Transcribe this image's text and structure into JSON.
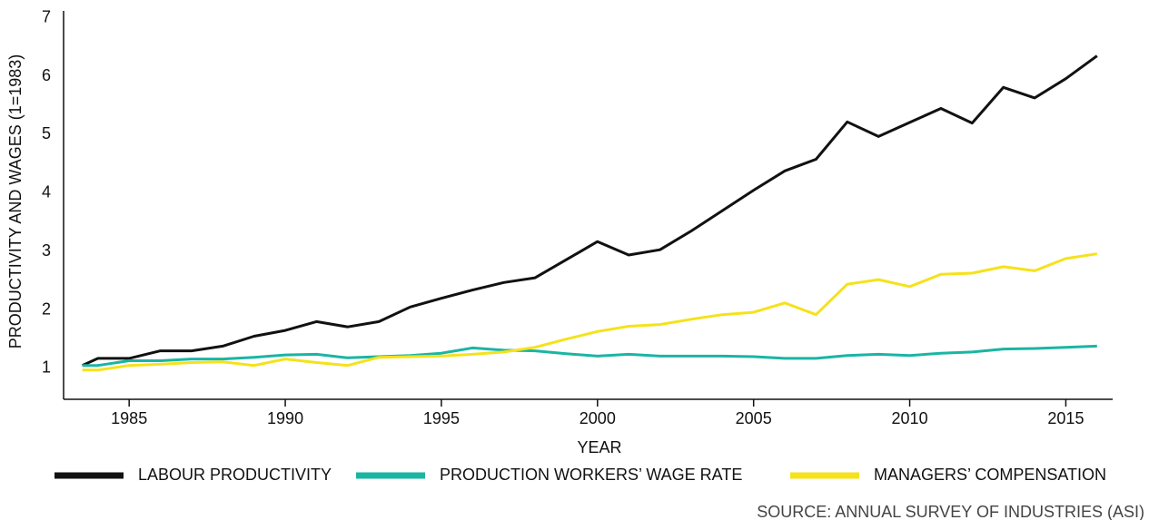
{
  "chart_data": {
    "type": "line",
    "x_label": "YEAR",
    "y_label": "PRODUCTIVITY AND WAGES (1=1983)",
    "source": "SOURCE: ANNUAL SURVEY OF INDUSTRIES (ASI)",
    "x": [
      1983.5,
      1984,
      1985,
      1986,
      1987,
      1988,
      1989,
      1990,
      1991,
      1992,
      1993,
      1994,
      1995,
      1996,
      1997,
      1998,
      1999,
      2000,
      2001,
      2002,
      2003,
      2004,
      2005,
      2006,
      2007,
      2008,
      2009,
      2010,
      2011,
      2012,
      2013,
      2014,
      2015,
      2016
    ],
    "series": [
      {
        "name": "LABOUR PRODUCTIVITY",
        "color": "#111111",
        "values": [
          1.05,
          1.17,
          1.17,
          1.3,
          1.3,
          1.38,
          1.55,
          1.65,
          1.8,
          1.71,
          1.8,
          2.05,
          2.2,
          2.34,
          2.47,
          2.55,
          2.86,
          3.17,
          2.94,
          3.03,
          3.35,
          3.7,
          4.05,
          4.38,
          4.58,
          5.22,
          4.97,
          5.21,
          5.45,
          5.2,
          5.81,
          5.63,
          5.96,
          6.35
        ]
      },
      {
        "name": "PRODUCTION WORKERS’ WAGE RATE",
        "color": "#1ab5a3",
        "values": [
          1.05,
          1.05,
          1.13,
          1.13,
          1.16,
          1.16,
          1.19,
          1.23,
          1.24,
          1.18,
          1.2,
          1.22,
          1.26,
          1.35,
          1.31,
          1.3,
          1.25,
          1.21,
          1.24,
          1.21,
          1.21,
          1.21,
          1.2,
          1.17,
          1.17,
          1.22,
          1.24,
          1.22,
          1.26,
          1.28,
          1.33,
          1.34,
          1.36,
          1.38
        ]
      },
      {
        "name": "MANAGERS’ COMPENSATION",
        "color": "#f5e21a",
        "values": [
          0.97,
          0.97,
          1.05,
          1.07,
          1.1,
          1.11,
          1.05,
          1.16,
          1.1,
          1.05,
          1.19,
          1.2,
          1.21,
          1.24,
          1.28,
          1.36,
          1.5,
          1.63,
          1.72,
          1.75,
          1.84,
          1.92,
          1.96,
          2.12,
          1.92,
          2.44,
          2.52,
          2.4,
          2.61,
          2.63,
          2.74,
          2.67,
          2.88,
          2.96
        ]
      }
    ],
    "xlim": [
      1982.9,
      2016.5
    ],
    "xticks": [
      1985,
      1990,
      1995,
      2000,
      2005,
      2010,
      2015
    ],
    "ylim": [
      0.47,
      7.12
    ],
    "yticks": [
      1,
      2,
      3,
      4,
      5,
      6,
      7
    ],
    "grid": false,
    "legend": "bottom"
  }
}
